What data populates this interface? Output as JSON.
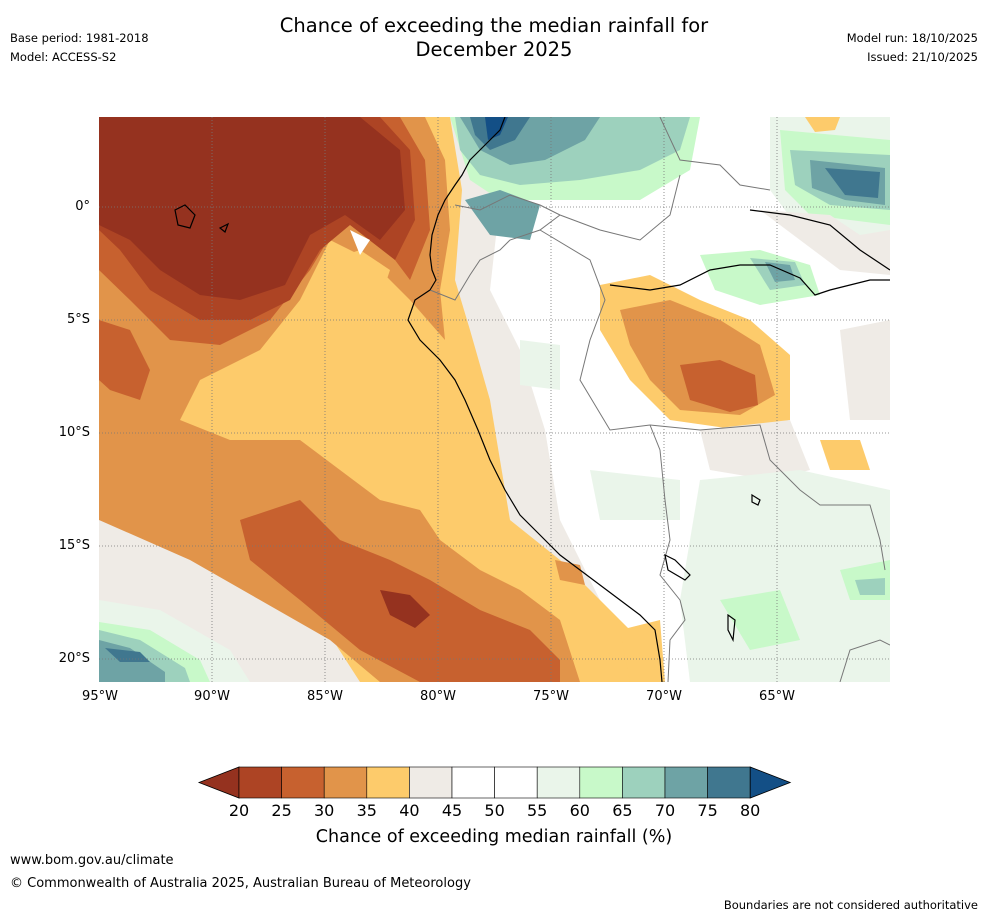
{
  "header": {
    "title_line1": "Chance of exceeding the median rainfall for",
    "title_line2": "December 2025",
    "base_period": "Base period: 1981-2018",
    "model": "Model: ACCESS-S2",
    "model_run": "Model run: 18/10/2025",
    "issued": "Issued: 21/10/2025"
  },
  "map": {
    "lat_labels": [
      "0°",
      "5°S",
      "10°S",
      "15°S",
      "20°S"
    ],
    "lon_labels": [
      "95°W",
      "90°W",
      "85°W",
      "80°W",
      "75°W",
      "70°W",
      "65°W"
    ],
    "colors": {
      "c15": "#95321f",
      "c20": "#ad4424",
      "c25": "#c7612f",
      "c30": "#e1944a",
      "c35": "#fdcb6b",
      "c40": "#efebe6",
      "c45": "#ffffff",
      "c50": "#ffffff",
      "c55": "#eaf5ea",
      "c60": "#c8f9c9",
      "c65": "#9dd1bd",
      "c70": "#6ea3a5",
      "c75": "#40778f",
      "c80": "#134f86",
      "coast": "#000000",
      "border": "#777777",
      "grid": "#777777"
    }
  },
  "colorbar": {
    "ticks": [
      "20",
      "25",
      "30",
      "35",
      "40",
      "45",
      "50",
      "55",
      "60",
      "65",
      "70",
      "75",
      "80"
    ],
    "colors": [
      "#95321f",
      "#ad4424",
      "#c7612f",
      "#e1944a",
      "#fdcb6b",
      "#efebe6",
      "#ffffff",
      "#ffffff",
      "#eaf5ea",
      "#c8f9c9",
      "#9dd1bd",
      "#6ea3a5",
      "#40778f",
      "#134f86"
    ],
    "label": "Chance of exceeding median rainfall (%)"
  },
  "footer": {
    "url": "www.bom.gov.au/climate",
    "copyright": "© Commonwealth of Australia 2025, Australian Bureau of Meteorology",
    "disclaimer": "Boundaries are not considered authoritative"
  }
}
